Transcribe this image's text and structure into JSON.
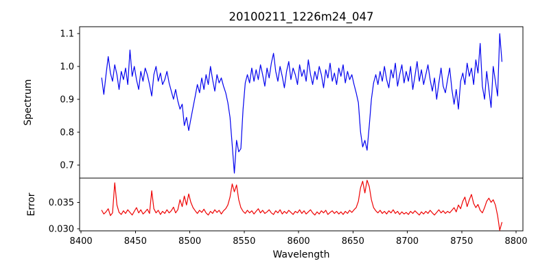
{
  "figure": {
    "background": "#ffffff"
  },
  "chart_data": {
    "type": "line",
    "title": "20100211_1226m24_047",
    "xlabel": "Wavelength",
    "xlim": [
      8398.7,
      8806.3
    ],
    "xticks": [
      "8400",
      "8450",
      "8500",
      "8550",
      "8600",
      "8650",
      "8700",
      "8750",
      "8800"
    ],
    "grid": false,
    "legend": "none",
    "panels": [
      {
        "name": "spectrum",
        "ylabel": "Spectrum",
        "color": "#0000ee",
        "ylim": [
          0.66,
          1.121
        ],
        "yticks": [
          "0.7",
          "0.8",
          "0.9",
          "1.0",
          "1.1"
        ]
      },
      {
        "name": "error",
        "ylabel": "Error",
        "color": "#ee0000",
        "ylim": [
          0.0296,
          0.0396
        ],
        "yticks": [
          "0.030",
          "0.035"
        ]
      }
    ],
    "x": [
      8419,
      8421,
      8423,
      8425,
      8427,
      8429,
      8431,
      8433,
      8435,
      8437,
      8439,
      8441,
      8443,
      8445,
      8447,
      8449,
      8451,
      8453,
      8455,
      8457,
      8459,
      8461,
      8463,
      8465,
      8467,
      8469,
      8471,
      8473,
      8475,
      8477,
      8479,
      8481,
      8483,
      8485,
      8487,
      8489,
      8491,
      8493,
      8495,
      8497,
      8499,
      8501,
      8503,
      8505,
      8507,
      8509,
      8511,
      8513,
      8515,
      8517,
      8519,
      8521,
      8523,
      8525,
      8527,
      8529,
      8531,
      8533,
      8535,
      8537,
      8539,
      8541,
      8543,
      8545,
      8547,
      8549,
      8551,
      8553,
      8555,
      8557,
      8559,
      8561,
      8563,
      8565,
      8567,
      8569,
      8571,
      8573,
      8575,
      8577,
      8579,
      8581,
      8583,
      8585,
      8587,
      8589,
      8591,
      8593,
      8595,
      8597,
      8599,
      8601,
      8603,
      8605,
      8607,
      8609,
      8611,
      8613,
      8615,
      8617,
      8619,
      8621,
      8623,
      8625,
      8627,
      8629,
      8631,
      8633,
      8635,
      8637,
      8639,
      8641,
      8643,
      8645,
      8647,
      8649,
      8651,
      8653,
      8655,
      8657,
      8659,
      8661,
      8663,
      8665,
      8667,
      8669,
      8671,
      8673,
      8675,
      8677,
      8679,
      8681,
      8683,
      8685,
      8687,
      8689,
      8691,
      8693,
      8695,
      8697,
      8699,
      8701,
      8703,
      8705,
      8707,
      8709,
      8711,
      8713,
      8715,
      8717,
      8719,
      8721,
      8723,
      8725,
      8727,
      8729,
      8731,
      8733,
      8735,
      8737,
      8739,
      8741,
      8743,
      8745,
      8747,
      8749,
      8751,
      8753,
      8755,
      8757,
      8759,
      8761,
      8763,
      8765,
      8767,
      8769,
      8771,
      8773,
      8775,
      8777,
      8779,
      8781,
      8783,
      8785,
      8787
    ],
    "spectrum": [
      0.965,
      0.915,
      0.975,
      1.03,
      0.98,
      0.955,
      1.005,
      0.975,
      0.93,
      0.985,
      0.96,
      0.995,
      0.945,
      1.05,
      0.97,
      1.0,
      0.96,
      0.93,
      0.985,
      0.955,
      0.995,
      0.975,
      0.945,
      0.91,
      0.975,
      1.0,
      0.955,
      0.98,
      0.945,
      0.96,
      0.985,
      0.95,
      0.925,
      0.9,
      0.93,
      0.895,
      0.87,
      0.885,
      0.82,
      0.845,
      0.805,
      0.84,
      0.875,
      0.91,
      0.945,
      0.92,
      0.965,
      0.93,
      0.975,
      0.945,
      1.0,
      0.96,
      0.925,
      0.975,
      0.95,
      0.965,
      0.94,
      0.92,
      0.89,
      0.845,
      0.76,
      0.675,
      0.775,
      0.74,
      0.75,
      0.87,
      0.95,
      0.975,
      0.95,
      0.995,
      0.955,
      0.99,
      0.96,
      1.005,
      0.975,
      0.94,
      0.995,
      0.965,
      1.01,
      1.04,
      0.985,
      0.955,
      1.0,
      0.97,
      0.935,
      0.985,
      1.015,
      0.96,
      0.995,
      0.975,
      0.945,
      1.005,
      0.97,
      0.99,
      0.955,
      1.02,
      0.975,
      0.945,
      0.985,
      0.96,
      1.0,
      0.975,
      0.935,
      0.99,
      0.965,
      1.01,
      0.955,
      0.98,
      0.945,
      0.995,
      0.97,
      1.005,
      0.95,
      0.985,
      0.96,
      0.975,
      0.945,
      0.92,
      0.89,
      0.8,
      0.755,
      0.775,
      0.745,
      0.82,
      0.9,
      0.95,
      0.975,
      0.945,
      0.985,
      0.955,
      1.0,
      0.96,
      0.935,
      0.99,
      0.965,
      1.01,
      0.94,
      0.975,
      1.005,
      0.95,
      0.985,
      0.955,
      1.0,
      0.93,
      0.97,
      1.015,
      0.955,
      0.99,
      0.945,
      0.975,
      1.005,
      0.96,
      0.925,
      0.965,
      0.9,
      0.95,
      0.995,
      0.94,
      0.92,
      0.96,
      0.995,
      0.93,
      0.885,
      0.93,
      0.87,
      0.955,
      0.98,
      0.945,
      1.01,
      0.97,
      0.995,
      0.945,
      1.02,
      0.98,
      1.07,
      0.94,
      0.9,
      0.985,
      0.93,
      0.875,
      1.0,
      0.955,
      0.91,
      1.1,
      1.015
    ],
    "error": [
      0.0335,
      0.0328,
      0.0332,
      0.0338,
      0.0325,
      0.033,
      0.0387,
      0.0345,
      0.0331,
      0.0327,
      0.0334,
      0.0329,
      0.0336,
      0.0331,
      0.0326,
      0.0333,
      0.034,
      0.033,
      0.0336,
      0.0328,
      0.0332,
      0.0337,
      0.0329,
      0.0372,
      0.0338,
      0.033,
      0.0335,
      0.0327,
      0.0333,
      0.0329,
      0.0336,
      0.033,
      0.0334,
      0.0341,
      0.033,
      0.0336,
      0.0355,
      0.0342,
      0.0362,
      0.0345,
      0.0366,
      0.035,
      0.034,
      0.0334,
      0.0329,
      0.0335,
      0.0331,
      0.0337,
      0.033,
      0.0326,
      0.0333,
      0.0329,
      0.0336,
      0.0331,
      0.0335,
      0.0328,
      0.0334,
      0.0338,
      0.0345,
      0.036,
      0.0385,
      0.037,
      0.0383,
      0.0355,
      0.034,
      0.0333,
      0.0329,
      0.0335,
      0.033,
      0.0334,
      0.0328,
      0.0333,
      0.0338,
      0.033,
      0.0335,
      0.0329,
      0.0332,
      0.0336,
      0.033,
      0.0327,
      0.0334,
      0.033,
      0.0336,
      0.0328,
      0.0333,
      0.0329,
      0.0335,
      0.0331,
      0.0327,
      0.0333,
      0.033,
      0.0336,
      0.0329,
      0.0334,
      0.0328,
      0.0332,
      0.0336,
      0.033,
      0.0326,
      0.0332,
      0.0328,
      0.0334,
      0.033,
      0.0335,
      0.0327,
      0.0331,
      0.0334,
      0.0329,
      0.0333,
      0.0328,
      0.0332,
      0.0327,
      0.0333,
      0.0329,
      0.0335,
      0.0331,
      0.0336,
      0.034,
      0.0352,
      0.0378,
      0.039,
      0.0368,
      0.0392,
      0.038,
      0.0355,
      0.034,
      0.0334,
      0.033,
      0.0335,
      0.0329,
      0.0333,
      0.0328,
      0.0334,
      0.033,
      0.0336,
      0.0329,
      0.0333,
      0.0327,
      0.0332,
      0.0328,
      0.0331,
      0.0327,
      0.0333,
      0.0329,
      0.0334,
      0.033,
      0.0326,
      0.0332,
      0.0328,
      0.0333,
      0.0329,
      0.0335,
      0.033,
      0.0326,
      0.0331,
      0.0336,
      0.033,
      0.0334,
      0.0329,
      0.0333,
      0.033,
      0.0335,
      0.034,
      0.0332,
      0.0345,
      0.0338,
      0.0352,
      0.036,
      0.0342,
      0.0355,
      0.0365,
      0.0348,
      0.034,
      0.0346,
      0.0335,
      0.033,
      0.034,
      0.0352,
      0.0358,
      0.035,
      0.0355,
      0.0345,
      0.0325,
      0.0297,
      0.0312
    ]
  }
}
